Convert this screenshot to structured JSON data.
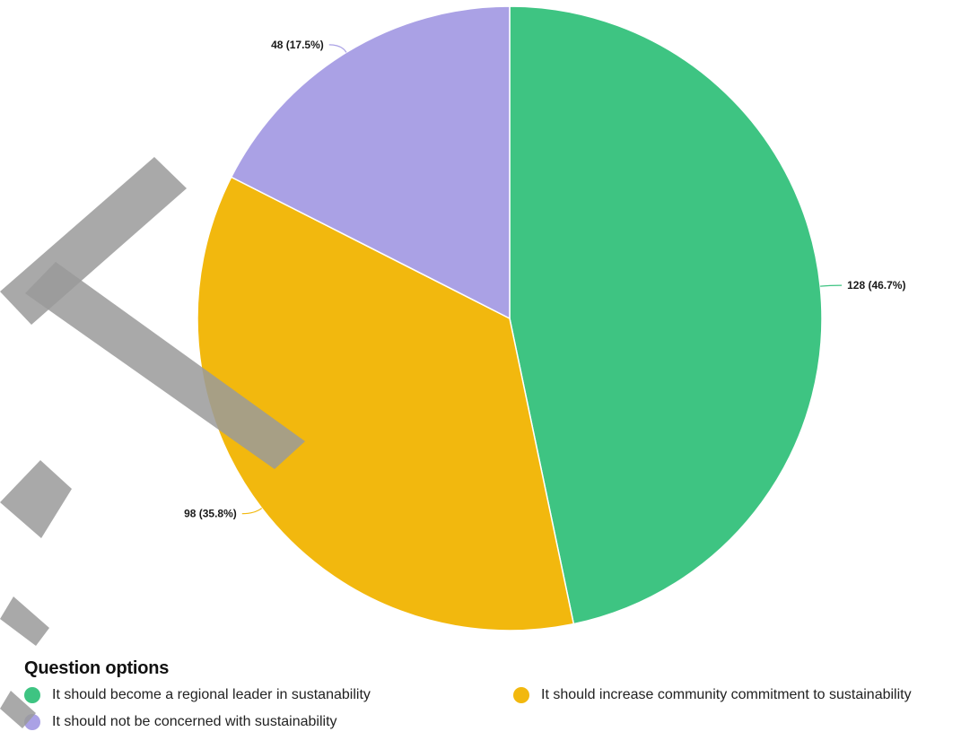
{
  "legend": {
    "title": "Question options"
  },
  "colors": {
    "green": "#3ec482",
    "yellow": "#f2b80e",
    "purple": "#aaa1e5",
    "watermark": "#9a9a9a"
  },
  "chart_data": {
    "type": "pie",
    "categories": [
      "It should become a regional leader in sustanability",
      "It should increase community commitment to sustainability",
      "It should not be concerned with sustainability"
    ],
    "values": [
      128,
      98,
      48
    ],
    "percentages": [
      46.7,
      35.8,
      17.5
    ],
    "data_labels": [
      "128 (46.7%)",
      "98 (35.8%)",
      "48 (17.5%)"
    ],
    "colors": [
      "#3ec482",
      "#f2b80e",
      "#aaa1e5"
    ],
    "start_angle": "12 o'clock",
    "direction": "clockwise",
    "legend_position": "bottom"
  }
}
